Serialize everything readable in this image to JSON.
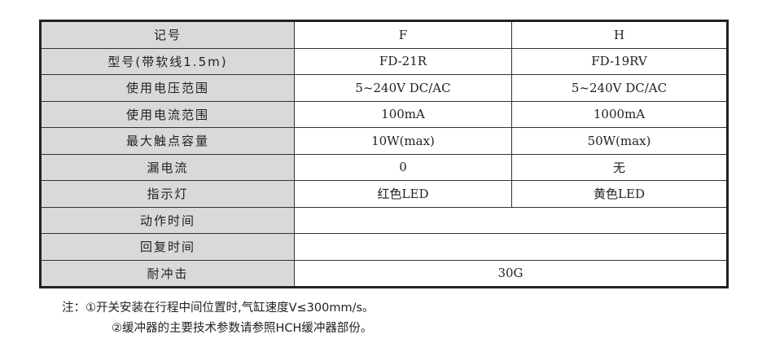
{
  "rows": [
    {
      "label": "记号",
      "f": "F",
      "h": "H"
    },
    {
      "label": "型号(带软线1.5m)",
      "f": "FD-21R",
      "h": "FD-19RV"
    },
    {
      "label": "使用电压范围",
      "f": "5~240V DC/AC",
      "h": "5~240V DC/AC"
    },
    {
      "label": "使用电流范围",
      "f": "100mA",
      "h": "1000mA"
    },
    {
      "label": "最大触点容量",
      "f": "10W(max)",
      "h": "50W(max)"
    },
    {
      "label": "漏电流",
      "f": "0",
      "h": "无"
    },
    {
      "label": "指示灯",
      "f": "红色LED",
      "h": "黄色LED"
    },
    {
      "label": "动作时间",
      "span": ""
    },
    {
      "label": "回复时间",
      "span": ""
    },
    {
      "label": "耐冲击",
      "span": "30G"
    }
  ],
  "notes": [
    "注：①开关安装在行程中间位置时,气缸速度V≤300mm/s。",
    "②缓冲器的主要技术参数请参照HCH缓冲器部份。"
  ]
}
